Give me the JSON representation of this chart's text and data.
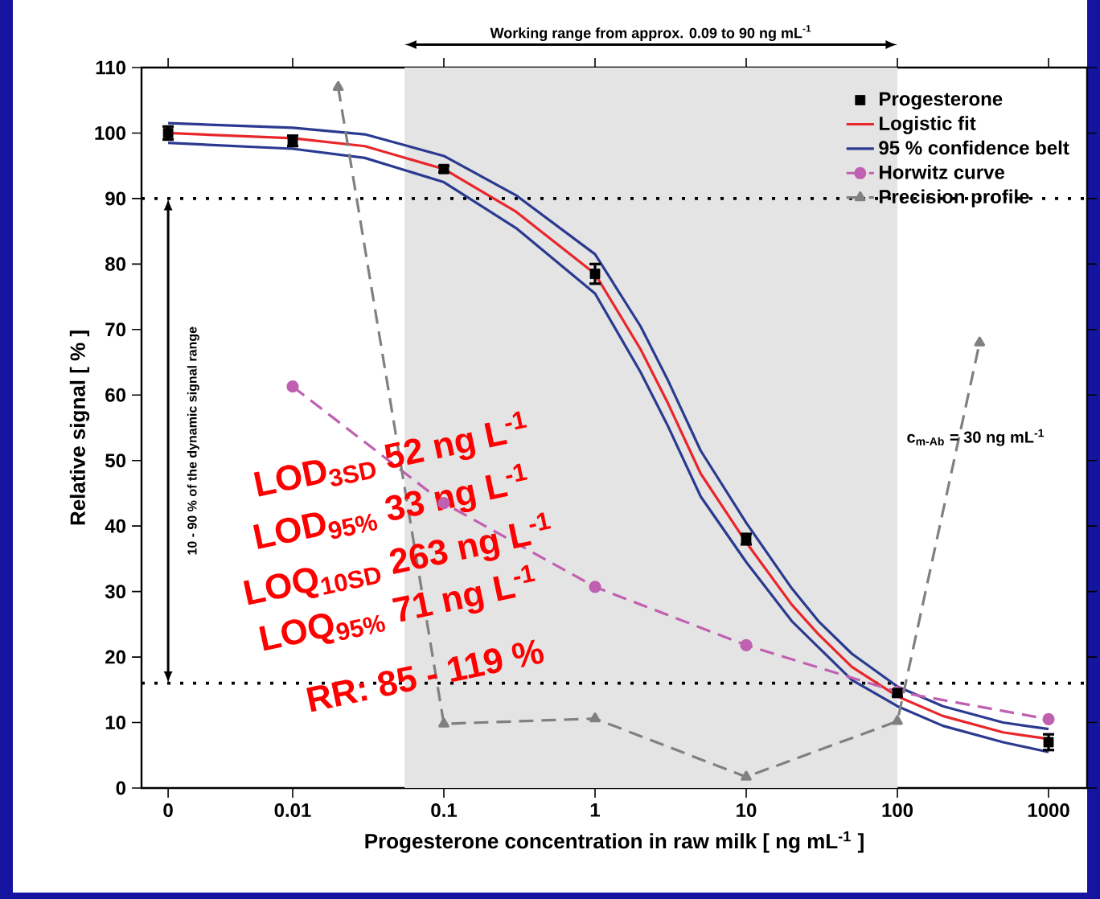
{
  "chart_data": {
    "type": "line",
    "xlabel": "Progesterone concentration in raw milk [ ng mL$^{-1}$ ]",
    "ylabel": "Relative signal [ % ]",
    "log": "x",
    "xlim": [
      0.001,
      1800
    ],
    "ylim": [
      0,
      110
    ],
    "xticks": [
      {
        "value": 0.0015,
        "label": "0"
      },
      0.01,
      0.1,
      1,
      10,
      100,
      1000
    ],
    "yticks": [
      0,
      10,
      20,
      30,
      40,
      50,
      60,
      70,
      80,
      90,
      100,
      110
    ],
    "legend": "top right",
    "series": [
      {
        "name": "Progesterone",
        "type": "scatter",
        "color": "#000000",
        "marker": "square",
        "x": [
          0.0015,
          0.01,
          0.1,
          1,
          10,
          100,
          1000
        ],
        "values": [
          100,
          98.8,
          94.5,
          78.5,
          38,
          14.5,
          7
        ],
        "errors": [
          1,
          0.8,
          0.5,
          1.5,
          0.8,
          0.5,
          1.2
        ]
      },
      {
        "name": "Logistic fit",
        "color": "#e8262b",
        "marker": "none",
        "line_style": "solid",
        "x": [
          0.0015,
          0.01,
          0.03,
          0.1,
          0.3,
          1,
          2,
          3,
          5,
          10,
          20,
          30,
          50,
          100,
          200,
          500,
          1000
        ],
        "values": [
          100,
          99.2,
          98,
          94.5,
          88,
          78.5,
          67,
          59,
          48,
          37.5,
          28,
          23.5,
          18.5,
          14,
          11,
          8.5,
          7.5
        ]
      },
      {
        "name": "95 % confidence belt",
        "color": "#2a3a90",
        "marker": "none",
        "line_style": "solid",
        "x": [
          0.0015,
          0.01,
          0.03,
          0.1,
          0.3,
          1,
          2,
          3,
          5,
          10,
          20,
          30,
          50,
          100,
          200,
          500,
          1000
        ],
        "values": [
          101.5,
          100.8,
          99.8,
          96.5,
          90.5,
          81.5,
          70.5,
          62.5,
          51.5,
          40.5,
          30.5,
          25.5,
          20.5,
          15.5,
          12.5,
          10,
          9
        ]
      },
      {
        "color": "#2a3a90",
        "marker": "none",
        "line_style": "solid",
        "x": [
          0.0015,
          0.01,
          0.03,
          0.1,
          0.3,
          1,
          2,
          3,
          5,
          10,
          20,
          30,
          50,
          100,
          200,
          500,
          1000
        ],
        "values": [
          98.5,
          97.6,
          96.2,
          92.5,
          85.5,
          75.5,
          63.5,
          55.5,
          44.5,
          34.5,
          25.5,
          21.5,
          16.5,
          12.5,
          9.5,
          7,
          5.5
        ]
      },
      {
        "name": "Horwitz curve",
        "color": "#c060b0",
        "marker": "circle",
        "line_style": "dashed",
        "x": [
          0.01,
          0.1,
          1,
          10,
          100,
          1000
        ],
        "values": [
          61.3,
          43.5,
          30.7,
          21.8,
          14.7,
          10.5
        ]
      },
      {
        "name": "Precision profile",
        "color": "#808080",
        "marker": "triangle",
        "line_style": "dashed",
        "x": [
          0.02,
          0.1,
          1,
          10,
          100,
          350
        ],
        "values": [
          107,
          9.8,
          10.6,
          1.7,
          10.2,
          68
        ]
      }
    ],
    "ref_lines": [
      {
        "axis": "y",
        "value": 90,
        "color": "#000000",
        "line_style": "dotted"
      },
      {
        "axis": "y",
        "value": 16,
        "color": "#000000",
        "line_style": "dotted"
      }
    ],
    "bands": [
      {
        "axis": "x",
        "from": 0.055,
        "to": 100,
        "color": "#e4e4e4",
        "label": "Working range from approx. 0.09 to 90 ng mL$^{-1}$"
      }
    ],
    "annotations": [
      "c$_{m-Ab}$ = 30 ng mL$^{-1}$",
      "10 - 90 % of the dynamic signal range",
      "LOD$_{3SD}$ 52 ng L$^{-1}$",
      "LOD$_{95%}$ 33 ng L$^{-1}$",
      "LOQ$_{10SD}$ 263 ng L$^{-1}$",
      "LOQ$_{95%}$ 71 ng L$^{-1}$",
      "RR: 85 - 119 %"
    ]
  }
}
